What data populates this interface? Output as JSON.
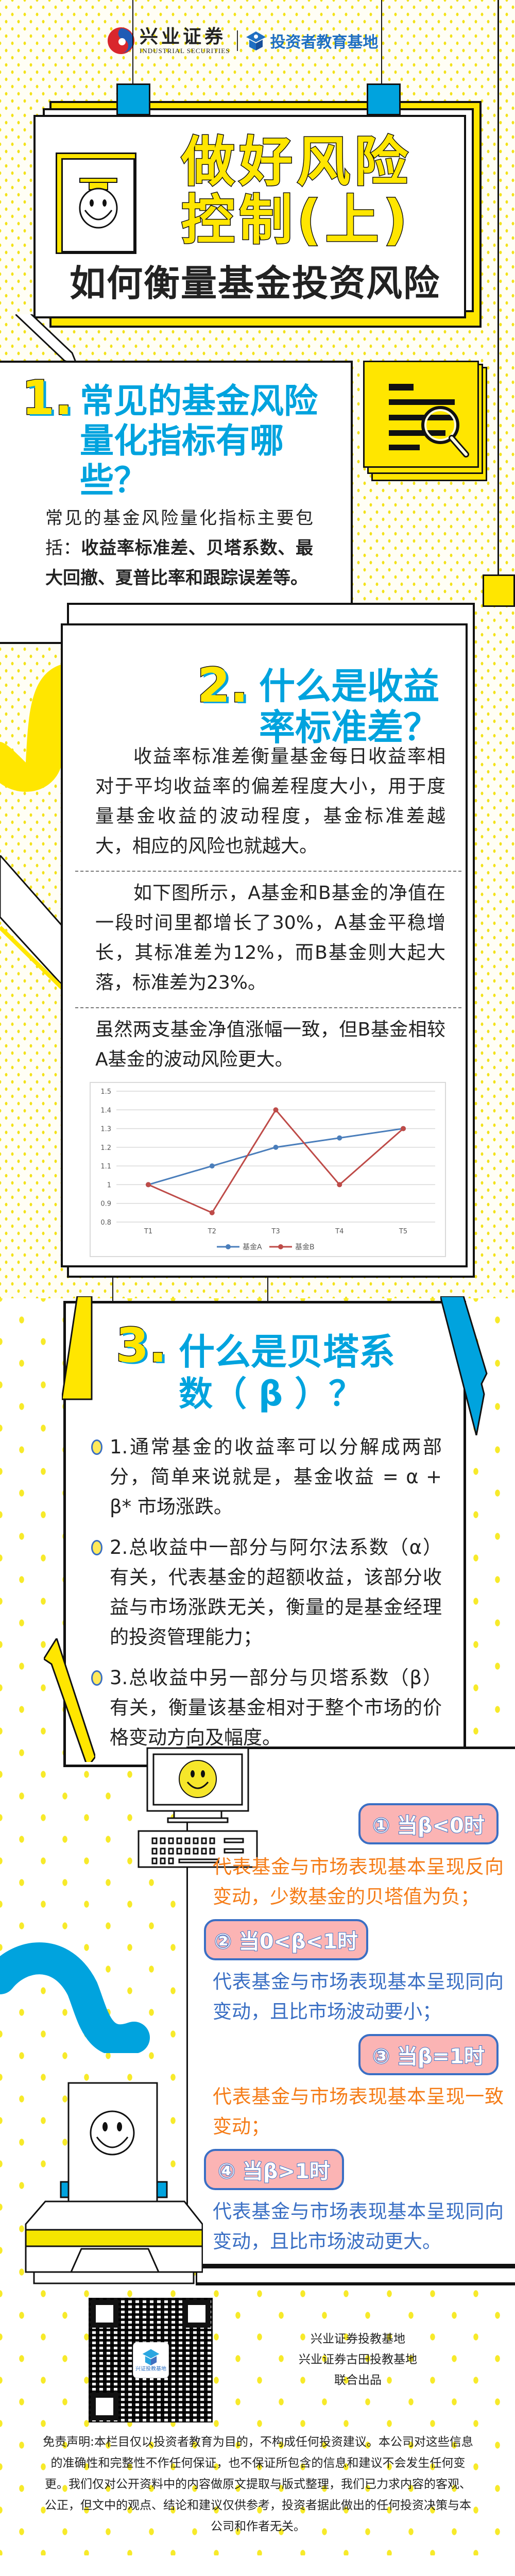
{
  "header": {
    "brand_cn": "兴业证券",
    "brand_en": "INDUSTRIAL SECURITIES",
    "partner": "投资者教育基地"
  },
  "hero": {
    "title_line1": "做好风险",
    "title_line2": "控制(上)",
    "subtitle": "如何衡量基金投资风险",
    "icon": "smiley-graduate-document-icon"
  },
  "section1": {
    "number": "1.",
    "title": "常见的基金风险量化指标有哪些？",
    "body_prefix": "常见的基金风险量化指标主要包括：",
    "body_bold": "收益率标准差、贝塔系数、最大回撤、夏普比率和跟踪误差等。",
    "icon": "document-magnifier-icon"
  },
  "section2": {
    "number": "2.",
    "title": "什么是收益率标准差？",
    "para1": "收益率标准差衡量基金每日收益率相对于平均收益率的偏差程度大小，用于度量基金收益的波动程度，基金标准差越大，相应的风险也就越大。",
    "para2": "如下图所示，A基金和B基金的净值在一段时间里都增长了30%，A基金平稳增长，其标准差为12%，而B基金则大起大落，标准差为23%。",
    "para3": "虽然两支基金净值涨幅一致，但B基金相较A基金的波动风险更大。"
  },
  "chart_data": {
    "type": "line",
    "categories": [
      "T1",
      "T2",
      "T3",
      "T4",
      "T5"
    ],
    "series": [
      {
        "name": "基金A",
        "values": [
          1.0,
          1.1,
          1.2,
          1.25,
          1.3
        ],
        "color": "#4a7ebb"
      },
      {
        "name": "基金B",
        "values": [
          1.0,
          0.85,
          1.4,
          1.0,
          1.3
        ],
        "color": "#be4b48"
      }
    ],
    "yticks": [
      "1.5",
      "1.4",
      "1.3",
      "1.2",
      "1.1",
      "1",
      "0.9",
      "0.8"
    ],
    "ylim": [
      0.8,
      1.5
    ],
    "grid": true,
    "legend": "bottom",
    "title": "",
    "xlabel": "",
    "ylabel": ""
  },
  "section3": {
    "number": "3.",
    "title_line1": "什么是贝塔系",
    "title_line2": "数（ β ）？",
    "points": [
      {
        "text": "1.通常基金的收益率可以分解成两部分，简单来说就是，基金收益 = α + β* 市场涨跌。",
        "color": "#f57c17"
      },
      {
        "text": "2.总收益中一部分与阿尔法系数（α）有关，代表基金的超额收益，该部分收益与市场涨跌无关，衡量的是基金经理的投资管理能力；",
        "color": "#3a6fc4"
      },
      {
        "text": "3.总收益中另一部分与贝塔系数（β）有关，衡量该基金相对于整个市场的价格变动方向及幅度。",
        "color": "#f57c17"
      }
    ],
    "cases": [
      {
        "label": "① 当β<0时",
        "desc": "代表基金与市场表现基本呈现反向变动，少数基金的贝塔值为负；"
      },
      {
        "label": "② 当0<β<1时",
        "desc": "代表基金与市场表现基本呈现同向变动，且比市场波动要小；"
      },
      {
        "label": "③ 当β=1时",
        "desc": "代表基金与市场表现基本呈现一致变动；"
      },
      {
        "label": "④ 当β>1时",
        "desc": "代表基金与市场表现基本呈现同向变动，且比市场波动更大。"
      }
    ]
  },
  "footer": {
    "qr_label": "兴证投教基地",
    "line1": "兴业证券投教基地",
    "line2": "兴业证券古田投教基地",
    "line3": "联合出品",
    "disclaimer": "免责声明:本栏目仅以投资者教育为目的，不构成任何投资建议。本公司对这些信息的准确性和完整性不作任何保证，也不保证所包含的信息和建议不会发生任何变更。我们仅对公开资料中的内容做原文提取与版式整理，我们已力求内容的客观、公正，但文中的观点、结论和建议仅供参考，投资者据此做出的任何投资决策与本公司和作者无关。"
  },
  "colors": {
    "yellow": "#ffe600",
    "blue": "#00a3de",
    "orange": "#f57c17",
    "text_blue": "#3a6fc4",
    "pink": "#fbb4b4"
  }
}
